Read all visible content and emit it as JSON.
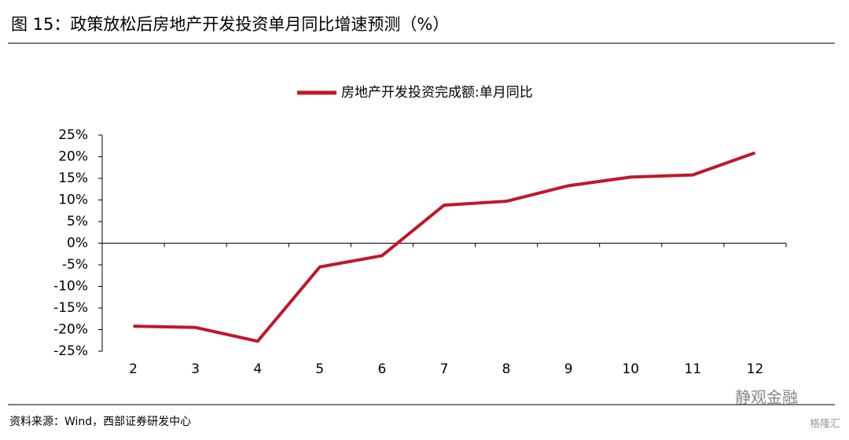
{
  "header": {
    "title": "图 15：政策放松后房地产开发投资单月同比增速预测（%）"
  },
  "chart_data": {
    "type": "line",
    "categories": [
      "2",
      "3",
      "4",
      "5",
      "6",
      "7",
      "8",
      "9",
      "10",
      "11",
      "12"
    ],
    "series": [
      {
        "name": "房地产开发投资完成额:单月同比",
        "color": "#c0172b",
        "values": [
          -19.2,
          -19.5,
          -22.7,
          -5.5,
          -2.9,
          8.8,
          9.7,
          13.3,
          15.3,
          15.8,
          20.9
        ]
      }
    ],
    "ylim": [
      -25,
      25
    ],
    "yticks": [
      {
        "value": -25,
        "label": "-25%"
      },
      {
        "value": -20,
        "label": "-20%"
      },
      {
        "value": -15,
        "label": "-15%"
      },
      {
        "value": -10,
        "label": "-10%"
      },
      {
        "value": -5,
        "label": "-5%"
      },
      {
        "value": 0,
        "label": "0%"
      },
      {
        "value": 5,
        "label": "5%"
      },
      {
        "value": 10,
        "label": "10%"
      },
      {
        "value": 15,
        "label": "15%"
      },
      {
        "value": 20,
        "label": "20%"
      },
      {
        "value": 25,
        "label": "25%"
      }
    ],
    "legend": "top"
  },
  "footer": {
    "source": "资料来源：Wind，西部证券研发中心",
    "watermark": "静观金融",
    "badge": "格隆汇"
  }
}
